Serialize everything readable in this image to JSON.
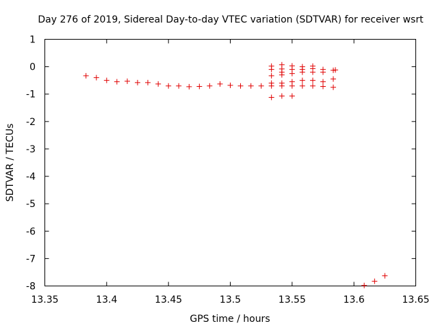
{
  "chart_data": {
    "type": "scatter",
    "title": "Day 276 of 2019, Sidereal Day-to-day VTEC variation (SDTVAR) for receiver wsrt",
    "xlabel": "GPS time / hours",
    "ylabel": "SDTVAR / TECUs",
    "xlim": [
      13.35,
      13.65
    ],
    "ylim": [
      -8,
      1
    ],
    "x_ticks": [
      13.35,
      13.4,
      13.45,
      13.5,
      13.55,
      13.6,
      13.65
    ],
    "x_tick_labels": [
      "13.35",
      "13.4",
      "13.45",
      "13.5",
      "13.55",
      "13.6",
      "13.65"
    ],
    "y_ticks": [
      1,
      0,
      -1,
      -2,
      -3,
      -4,
      -5,
      -6,
      -7,
      -8
    ],
    "y_tick_labels": [
      "1",
      "0",
      "-1",
      "-2",
      "-3",
      "-4",
      "-5",
      "-6",
      "-7",
      "-8"
    ],
    "grid": false,
    "marker": "+",
    "series": [
      {
        "name": "SDTVAR",
        "color": "#e00000",
        "points": [
          [
            13.3833,
            -0.33
          ],
          [
            13.3917,
            -0.4
          ],
          [
            13.4,
            -0.5
          ],
          [
            13.4083,
            -0.55
          ],
          [
            13.4167,
            -0.53
          ],
          [
            13.425,
            -0.58
          ],
          [
            13.4333,
            -0.58
          ],
          [
            13.4417,
            -0.63
          ],
          [
            13.45,
            -0.7
          ],
          [
            13.4583,
            -0.7
          ],
          [
            13.4667,
            -0.73
          ],
          [
            13.475,
            -0.72
          ],
          [
            13.4833,
            -0.7
          ],
          [
            13.4917,
            -0.63
          ],
          [
            13.5,
            -0.68
          ],
          [
            13.5083,
            -0.7
          ],
          [
            13.5167,
            -0.7
          ],
          [
            13.525,
            -0.7
          ],
          [
            13.5333,
            -1.12
          ],
          [
            13.5333,
            -0.7
          ],
          [
            13.5333,
            -0.6
          ],
          [
            13.5333,
            -0.33
          ],
          [
            13.5333,
            -0.1
          ],
          [
            13.5333,
            0.02
          ],
          [
            13.5417,
            -1.07
          ],
          [
            13.5417,
            -0.7
          ],
          [
            13.5417,
            -0.6
          ],
          [
            13.5417,
            -0.3
          ],
          [
            13.5417,
            -0.2
          ],
          [
            13.5417,
            -0.08
          ],
          [
            13.5417,
            0.07
          ],
          [
            13.55,
            -1.07
          ],
          [
            13.55,
            -0.7
          ],
          [
            13.55,
            -0.55
          ],
          [
            13.55,
            -0.25
          ],
          [
            13.55,
            -0.1
          ],
          [
            13.55,
            0.03
          ],
          [
            13.5583,
            -0.7
          ],
          [
            13.5583,
            -0.5
          ],
          [
            13.5583,
            -0.2
          ],
          [
            13.5583,
            -0.1
          ],
          [
            13.5583,
            0.0
          ],
          [
            13.5667,
            -0.7
          ],
          [
            13.5667,
            -0.5
          ],
          [
            13.5667,
            -0.2
          ],
          [
            13.5667,
            -0.07
          ],
          [
            13.5667,
            0.02
          ],
          [
            13.575,
            -0.72
          ],
          [
            13.575,
            -0.55
          ],
          [
            13.575,
            -0.2
          ],
          [
            13.575,
            -0.1
          ],
          [
            13.5833,
            -0.75
          ],
          [
            13.5833,
            -0.45
          ],
          [
            13.5833,
            -0.13
          ],
          [
            13.585,
            -0.12
          ],
          [
            13.6083,
            -7.98
          ],
          [
            13.6167,
            -7.83
          ],
          [
            13.625,
            -7.63
          ]
        ]
      }
    ]
  }
}
